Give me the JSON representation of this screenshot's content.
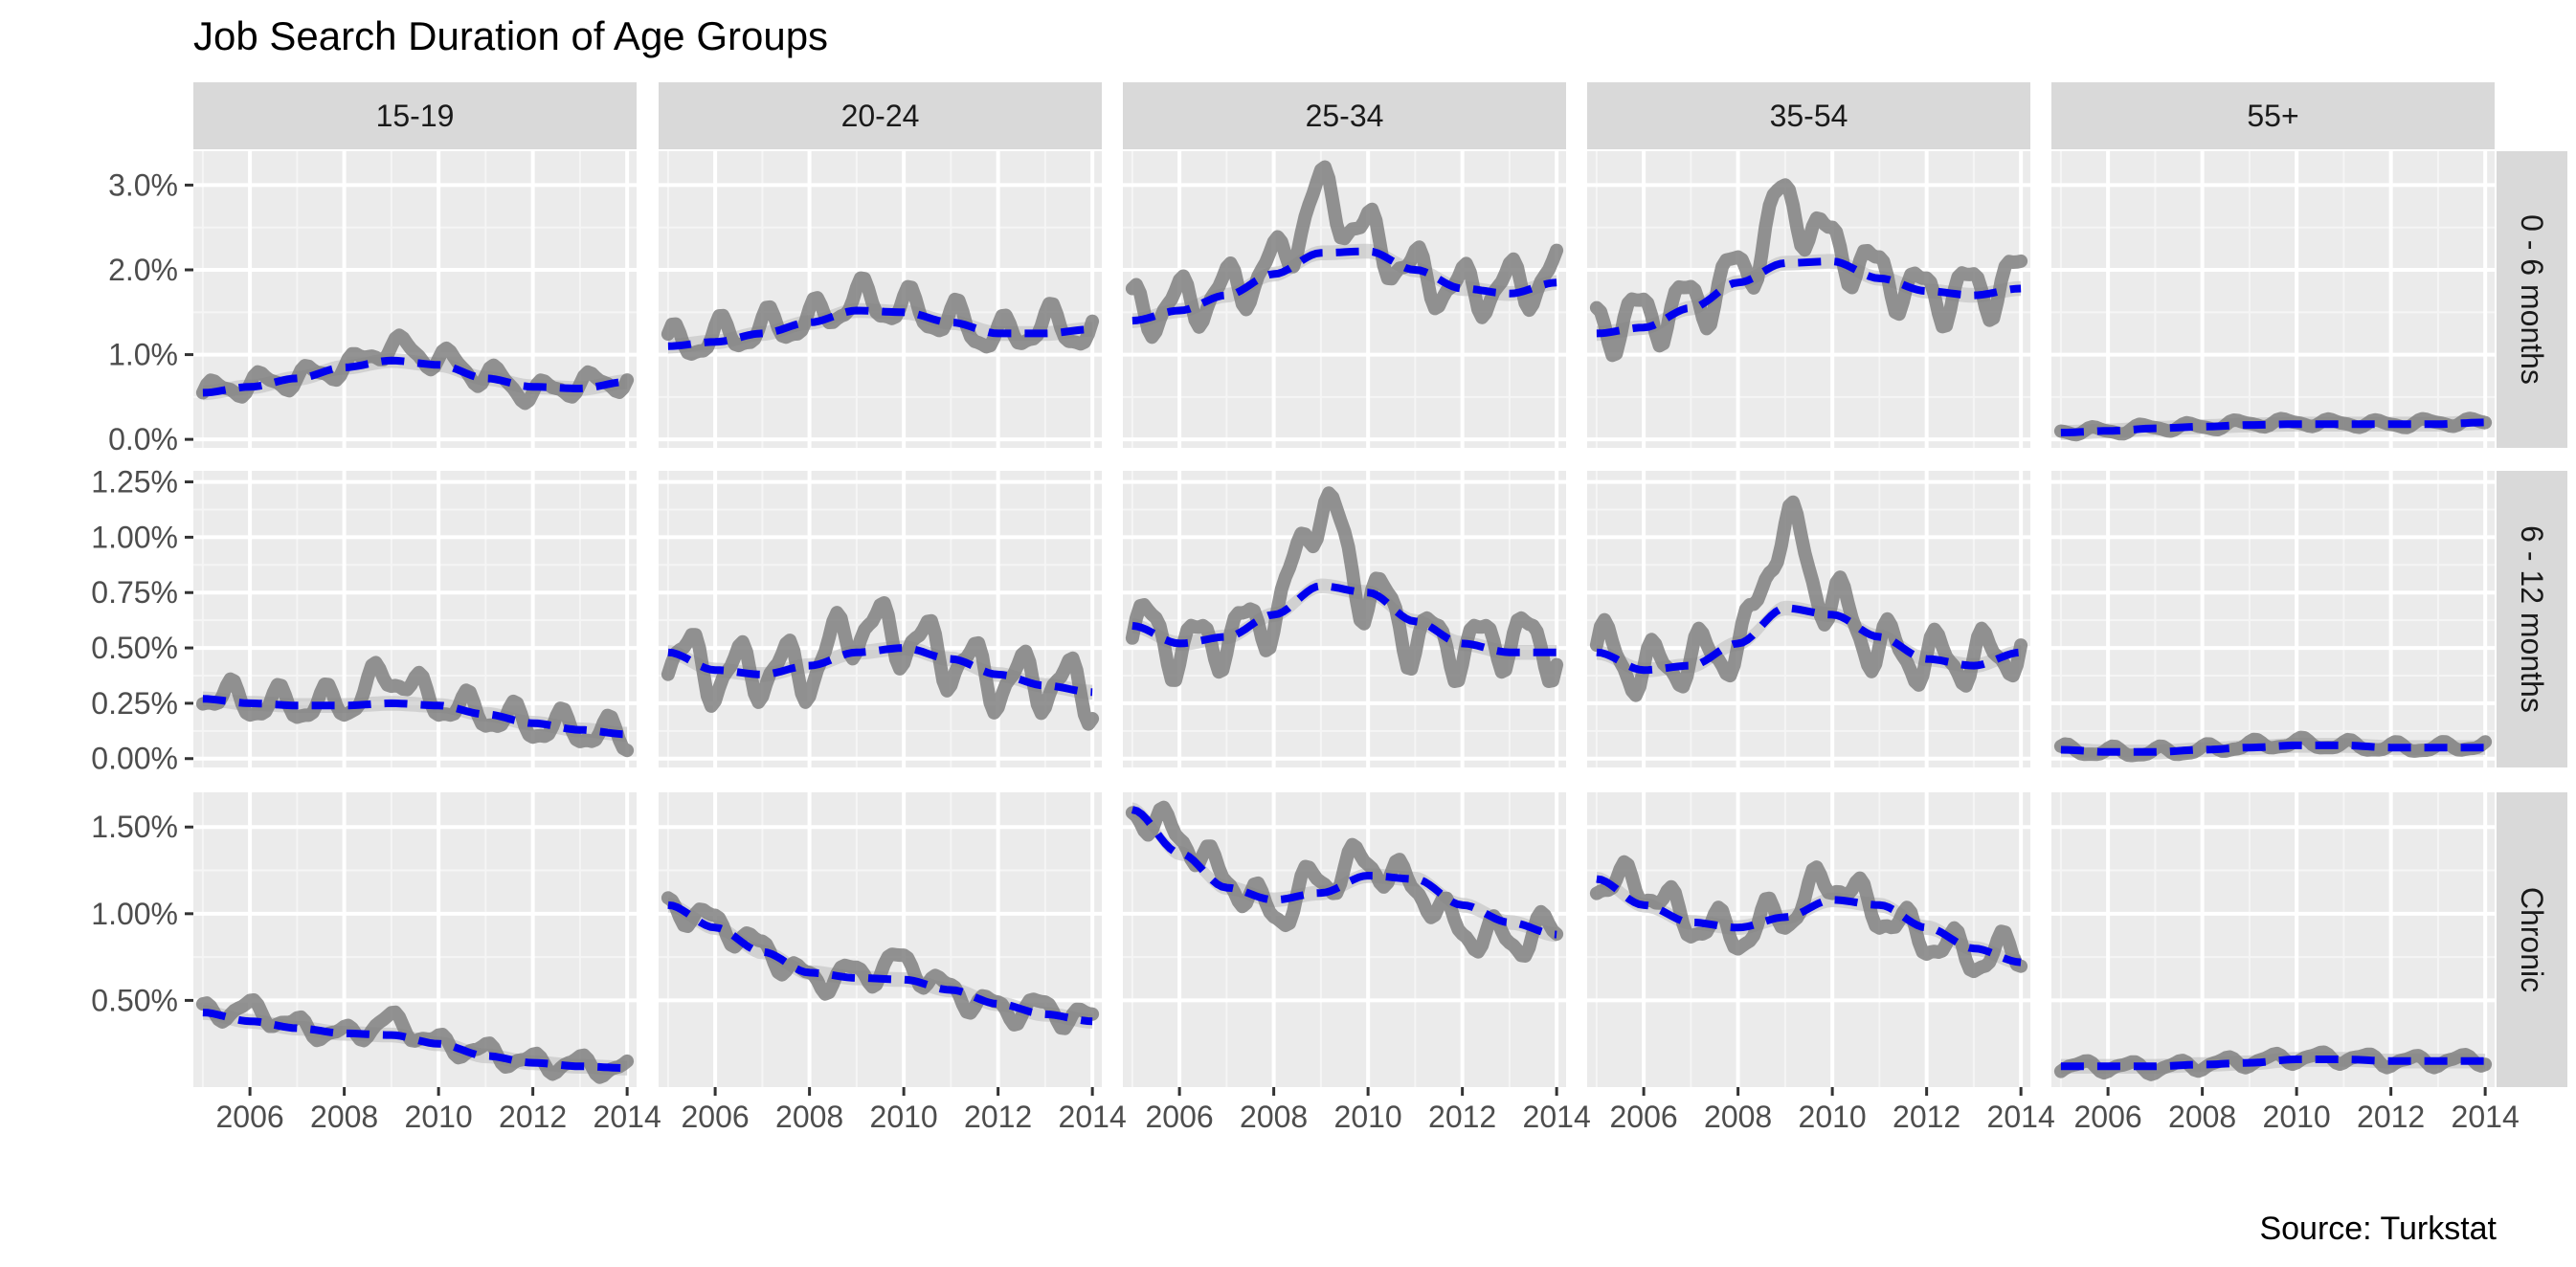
{
  "chart_data": {
    "type": "line",
    "title": "Job Search Duration of Age Groups",
    "caption": "Source: Turkstat",
    "x_ticks": [
      "2006",
      "2008",
      "2010",
      "2012",
      "2014"
    ],
    "xlim": [
      2004.8,
      2014.2
    ],
    "columns": [
      "15-19",
      "20-24",
      "25-34",
      "35-54",
      "55+"
    ],
    "rows": [
      {
        "label": "0 - 6 months",
        "ylim": [
          -0.1,
          3.4
        ],
        "ticks": [
          0,
          1,
          2,
          3
        ],
        "tick_labels": [
          "0.0%",
          "1.0%",
          "2.0%",
          "3.0%"
        ]
      },
      {
        "label": "6 - 12 months",
        "ylim": [
          -0.04,
          1.3
        ],
        "ticks": [
          0,
          0.25,
          0.5,
          0.75,
          1.0,
          1.25
        ],
        "tick_labels": [
          "0.00%",
          "0.25%",
          "0.50%",
          "0.75%",
          "1.00%",
          "1.25%"
        ]
      },
      {
        "label": "Chronic",
        "ylim": [
          0.0,
          1.7
        ],
        "ticks": [
          0.5,
          1.0,
          1.5
        ],
        "tick_labels": [
          "0.50%",
          "1.00%",
          "1.50%"
        ]
      }
    ],
    "series_colors": {
      "observed": "#808080",
      "trend": "#0000ee",
      "trend_band": "#c0c0c0"
    },
    "panels": [
      {
        "row": 0,
        "col": 0,
        "x": [
          2005,
          2006,
          2007,
          2008,
          2009,
          2010,
          2011,
          2012,
          2013,
          2014
        ],
        "trend": [
          0.55,
          0.62,
          0.72,
          0.85,
          0.93,
          0.88,
          0.72,
          0.62,
          0.6,
          0.68
        ],
        "observed": [
          0.55,
          0.65,
          0.72,
          0.85,
          1.1,
          0.95,
          0.75,
          0.55,
          0.65,
          0.7
        ],
        "amp": 0.12
      },
      {
        "row": 0,
        "col": 1,
        "x": [
          2005,
          2006,
          2007,
          2008,
          2009,
          2010,
          2011,
          2012,
          2013,
          2014
        ],
        "trend": [
          1.1,
          1.15,
          1.25,
          1.38,
          1.52,
          1.5,
          1.38,
          1.25,
          1.25,
          1.3
        ],
        "observed": [
          1.1,
          1.2,
          1.3,
          1.4,
          1.65,
          1.55,
          1.4,
          1.2,
          1.35,
          1.25
        ],
        "amp": 0.2
      },
      {
        "row": 0,
        "col": 2,
        "x": [
          2005,
          2006,
          2007,
          2008,
          2009,
          2010,
          2011,
          2012,
          2013,
          2014
        ],
        "trend": [
          1.4,
          1.52,
          1.7,
          1.95,
          2.2,
          2.22,
          2.0,
          1.78,
          1.72,
          1.85
        ],
        "observed": [
          1.5,
          1.6,
          1.75,
          2.05,
          2.9,
          2.4,
          1.95,
          1.75,
          1.8,
          1.95
        ],
        "amp": 0.28
      },
      {
        "row": 0,
        "col": 3,
        "x": [
          2005,
          2006,
          2007,
          2008,
          2009,
          2010,
          2011,
          2012,
          2013,
          2014
        ],
        "trend": [
          1.25,
          1.32,
          1.55,
          1.85,
          2.08,
          2.1,
          1.9,
          1.75,
          1.7,
          1.78
        ],
        "observed": [
          1.35,
          1.45,
          1.6,
          1.95,
          2.8,
          2.3,
          1.95,
          1.7,
          1.75,
          1.9
        ],
        "amp": 0.3
      },
      {
        "row": 0,
        "col": 4,
        "x": [
          2005,
          2006,
          2007,
          2008,
          2009,
          2010,
          2011,
          2012,
          2013,
          2014
        ],
        "trend": [
          0.08,
          0.1,
          0.13,
          0.15,
          0.17,
          0.18,
          0.18,
          0.18,
          0.18,
          0.2
        ],
        "observed": [
          0.1,
          0.1,
          0.14,
          0.15,
          0.19,
          0.2,
          0.19,
          0.18,
          0.2,
          0.2
        ],
        "amp": 0.04
      },
      {
        "row": 1,
        "col": 0,
        "x": [
          2005,
          2006,
          2007,
          2008,
          2009,
          2010,
          2011,
          2012,
          2013,
          2014
        ],
        "trend": [
          0.27,
          0.25,
          0.24,
          0.24,
          0.25,
          0.24,
          0.2,
          0.16,
          0.13,
          0.11
        ],
        "observed": [
          0.3,
          0.25,
          0.24,
          0.25,
          0.38,
          0.25,
          0.2,
          0.15,
          0.13,
          0.09
        ],
        "amp": 0.07
      },
      {
        "row": 1,
        "col": 1,
        "x": [
          2005,
          2006,
          2007,
          2008,
          2009,
          2010,
          2011,
          2012,
          2013,
          2014
        ],
        "trend": [
          0.48,
          0.4,
          0.38,
          0.42,
          0.48,
          0.5,
          0.45,
          0.38,
          0.33,
          0.3
        ],
        "observed": [
          0.5,
          0.38,
          0.4,
          0.4,
          0.6,
          0.55,
          0.45,
          0.35,
          0.35,
          0.3
        ],
        "amp": 0.12
      },
      {
        "row": 1,
        "col": 2,
        "x": [
          2005,
          2006,
          2007,
          2008,
          2009,
          2010,
          2011,
          2012,
          2013,
          2014
        ],
        "trend": [
          0.6,
          0.52,
          0.55,
          0.65,
          0.78,
          0.75,
          0.62,
          0.52,
          0.48,
          0.48
        ],
        "observed": [
          0.62,
          0.5,
          0.55,
          0.65,
          1.15,
          0.75,
          0.55,
          0.5,
          0.55,
          0.5
        ],
        "amp": 0.12
      },
      {
        "row": 1,
        "col": 3,
        "x": [
          2005,
          2006,
          2007,
          2008,
          2009,
          2010,
          2011,
          2012,
          2013,
          2014
        ],
        "trend": [
          0.48,
          0.4,
          0.42,
          0.52,
          0.68,
          0.65,
          0.55,
          0.45,
          0.42,
          0.48
        ],
        "observed": [
          0.5,
          0.4,
          0.45,
          0.5,
          1.05,
          0.7,
          0.5,
          0.45,
          0.45,
          0.5
        ],
        "amp": 0.11
      },
      {
        "row": 1,
        "col": 4,
        "x": [
          2005,
          2006,
          2007,
          2008,
          2009,
          2010,
          2011,
          2012,
          2013,
          2014
        ],
        "trend": [
          0.04,
          0.03,
          0.03,
          0.04,
          0.05,
          0.06,
          0.06,
          0.05,
          0.05,
          0.05
        ],
        "observed": [
          0.04,
          0.03,
          0.03,
          0.04,
          0.06,
          0.07,
          0.06,
          0.05,
          0.05,
          0.06
        ],
        "amp": 0.02
      },
      {
        "row": 2,
        "col": 0,
        "x": [
          2005,
          2006,
          2007,
          2008,
          2009,
          2010,
          2011,
          2012,
          2013,
          2014
        ],
        "trend": [
          0.43,
          0.38,
          0.34,
          0.31,
          0.3,
          0.25,
          0.18,
          0.14,
          0.12,
          0.11
        ],
        "observed": [
          0.43,
          0.45,
          0.35,
          0.3,
          0.38,
          0.25,
          0.2,
          0.14,
          0.13,
          0.1
        ],
        "amp": 0.05
      },
      {
        "row": 2,
        "col": 1,
        "x": [
          2005,
          2006,
          2007,
          2008,
          2009,
          2010,
          2011,
          2012,
          2013,
          2014
        ],
        "trend": [
          1.05,
          0.92,
          0.78,
          0.66,
          0.63,
          0.62,
          0.56,
          0.48,
          0.42,
          0.38
        ],
        "observed": [
          1.05,
          0.95,
          0.8,
          0.62,
          0.65,
          0.72,
          0.55,
          0.45,
          0.45,
          0.38
        ],
        "amp": 0.07
      },
      {
        "row": 2,
        "col": 2,
        "x": [
          2005,
          2006,
          2007,
          2008,
          2009,
          2010,
          2011,
          2012,
          2013,
          2014
        ],
        "trend": [
          1.6,
          1.35,
          1.15,
          1.08,
          1.12,
          1.22,
          1.2,
          1.05,
          0.95,
          0.88
        ],
        "observed": [
          1.6,
          1.45,
          1.2,
          1.0,
          1.2,
          1.3,
          1.15,
          0.9,
          0.85,
          0.9
        ],
        "amp": 0.1
      },
      {
        "row": 2,
        "col": 3,
        "x": [
          2005,
          2006,
          2007,
          2008,
          2009,
          2010,
          2011,
          2012,
          2013,
          2014
        ],
        "trend": [
          1.2,
          1.05,
          0.95,
          0.92,
          0.98,
          1.08,
          1.05,
          0.92,
          0.8,
          0.72
        ],
        "observed": [
          1.2,
          1.15,
          0.95,
          0.88,
          1.0,
          1.2,
          1.0,
          0.85,
          0.75,
          0.78
        ],
        "amp": 0.1
      },
      {
        "row": 2,
        "col": 4,
        "x": [
          2005,
          2006,
          2007,
          2008,
          2009,
          2010,
          2011,
          2012,
          2013,
          2014
        ],
        "trend": [
          0.12,
          0.12,
          0.12,
          0.13,
          0.14,
          0.16,
          0.16,
          0.15,
          0.15,
          0.15
        ],
        "observed": [
          0.12,
          0.12,
          0.11,
          0.13,
          0.15,
          0.17,
          0.17,
          0.15,
          0.15,
          0.16
        ],
        "amp": 0.03
      }
    ]
  }
}
